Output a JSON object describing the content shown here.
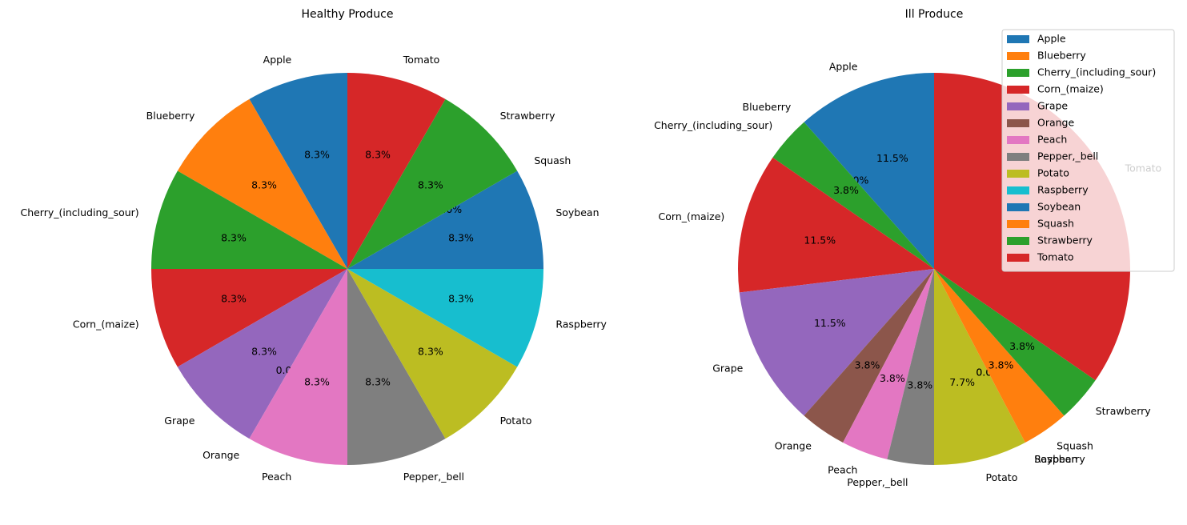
{
  "colors": [
    "#1f77b4",
    "#ff7f0e",
    "#2ca02c",
    "#d62728",
    "#9467bd",
    "#8c564b",
    "#e377c2",
    "#7f7f7f",
    "#bcbd22",
    "#17becf"
  ],
  "chart_data": [
    {
      "type": "pie",
      "title": "Healthy Produce",
      "start_angle_deg": 90,
      "direction": "counterclockwise",
      "categories": [
        "Apple",
        "Blueberry",
        "Cherry_(including_sour)",
        "Corn_(maize)",
        "Grape",
        "Orange",
        "Peach",
        "Pepper,_bell",
        "Potato",
        "Raspberry",
        "Soybean",
        "Squash",
        "Strawberry",
        "Tomato"
      ],
      "values": [
        1,
        1,
        1,
        1,
        1,
        0,
        1,
        1,
        1,
        1,
        1,
        0,
        1,
        1
      ],
      "percent_labels": [
        "8.3%",
        "8.3%",
        "8.3%",
        "8.3%",
        "8.3%",
        "0.0%",
        "8.3%",
        "8.3%",
        "8.3%",
        "8.3%",
        "8.3%",
        "0.0%",
        "8.3%",
        "8.3%"
      ]
    },
    {
      "type": "pie",
      "title": "Ill Produce",
      "start_angle_deg": 90,
      "direction": "counterclockwise",
      "categories": [
        "Apple",
        "Blueberry",
        "Cherry_(including_sour)",
        "Corn_(maize)",
        "Grape",
        "Orange",
        "Peach",
        "Pepper,_bell",
        "Potato",
        "Raspberry",
        "Soybean",
        "Squash",
        "Strawberry",
        "Tomato"
      ],
      "values": [
        3,
        0,
        1,
        3,
        3,
        1,
        1,
        1,
        2,
        0,
        0,
        1,
        1,
        9
      ],
      "percent_labels": [
        "11.5%",
        "0.0%",
        "3.8%",
        "11.5%",
        "11.5%",
        "3.8%",
        "3.8%",
        "3.8%",
        "7.7%",
        "0.0%",
        "0.0%",
        "3.8%",
        "3.8%",
        ""
      ],
      "legend": {
        "position": "top-right",
        "entries": [
          "Apple",
          "Blueberry",
          "Cherry_(including_sour)",
          "Corn_(maize)",
          "Grape",
          "Orange",
          "Peach",
          "Pepper,_bell",
          "Potato",
          "Raspberry",
          "Soybean",
          "Squash",
          "Strawberry",
          "Tomato"
        ]
      }
    }
  ]
}
